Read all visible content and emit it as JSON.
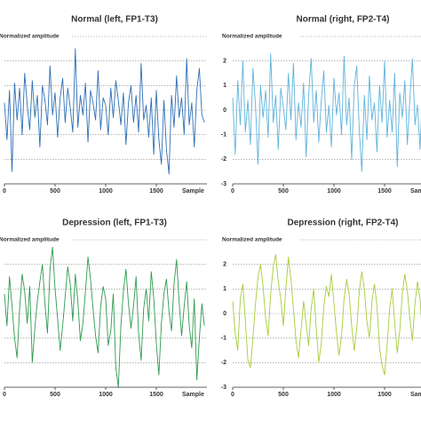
{
  "chart_data": [
    {
      "type": "line",
      "title": "Normal (left, FP1-T3)",
      "ylabel": "Normalized amplitude",
      "xlabel": "Sample",
      "x": [
        0,
        25,
        50,
        75,
        100,
        125,
        150,
        175,
        200,
        225,
        250,
        275,
        300,
        325,
        350,
        375,
        400,
        425,
        450,
        475,
        500,
        525,
        550,
        575,
        600,
        625,
        650,
        675,
        700,
        725,
        750,
        775,
        800,
        825,
        850,
        875,
        900,
        925,
        950,
        975,
        1000,
        1025,
        1050,
        1075,
        1100,
        1125,
        1150,
        1175,
        1200,
        1225,
        1250,
        1275,
        1300,
        1325,
        1350,
        1375,
        1400,
        1425,
        1450,
        1475,
        1500,
        1525,
        1550,
        1575,
        1600,
        1625,
        1650,
        1675,
        1700,
        1725,
        1750,
        1775,
        1800,
        1825,
        1850,
        1875,
        1900,
        1925,
        1950,
        1975
      ],
      "series": [
        {
          "name": "FP1-T3",
          "color": "#2e6fb5",
          "values": [
            0.3,
            -1.2,
            0.8,
            -2.5,
            1.1,
            -0.4,
            0.9,
            -1.0,
            1.5,
            0.2,
            -0.8,
            1.2,
            -0.3,
            0.6,
            -1.5,
            1.0,
            0.4,
            -0.6,
            1.8,
            -0.2,
            0.7,
            -1.1,
            0.5,
            1.3,
            -0.5,
            0.9,
            0.1,
            -0.9,
            2.5,
            -0.7,
            0.6,
            -0.2,
            1.1,
            -1.3,
            0.8,
            0.3,
            -0.4,
            1.6,
            -0.8,
            0.5,
            0.2,
            -1.0,
            0.9,
            -0.3,
            1.2,
            0.4,
            -0.6,
            0.7,
            -1.4,
            0.3,
            1.0,
            -0.5,
            0.6,
            -0.9,
            1.9,
            -0.4,
            0.2,
            -1.1,
            0.5,
            -1.8,
            0.8,
            -1.2,
            -2.2,
            0.4,
            -1.6,
            -2.6,
            0.6,
            -0.7,
            1.4,
            -0.3,
            0.5,
            -1.0,
            2.1,
            -0.6,
            0.3,
            -1.5,
            0.8,
            1.7,
            -0.2,
            -0.5
          ]
        }
      ],
      "xlim": [
        0,
        2000
      ],
      "xticks": [
        0,
        500,
        1000,
        1500
      ],
      "ylim": [
        -3,
        3
      ],
      "yticks": [
        2,
        1,
        0,
        -1,
        -2,
        -3
      ],
      "ytick_labels": false,
      "grid": true
    },
    {
      "type": "line",
      "title": "Normal (right, FP2-T4)",
      "ylabel": "Normalized amplitude",
      "xlabel": "Sample",
      "x": [
        0,
        25,
        50,
        75,
        100,
        125,
        150,
        175,
        200,
        225,
        250,
        275,
        300,
        325,
        350,
        375,
        400,
        425,
        450,
        475,
        500,
        525,
        550,
        575,
        600,
        625,
        650,
        675,
        700,
        725,
        750,
        775,
        800,
        825,
        850,
        875,
        900,
        925,
        950,
        975,
        1000,
        1025,
        1050,
        1075,
        1100,
        1125,
        1150,
        1175,
        1200,
        1225,
        1250,
        1275,
        1300,
        1325,
        1350,
        1375,
        1400,
        1425,
        1450,
        1475,
        1500,
        1525,
        1550,
        1575,
        1600,
        1625,
        1650,
        1675,
        1700,
        1725,
        1750,
        1775,
        1800,
        1825,
        1850,
        1875,
        1900,
        1925,
        1950,
        1975
      ],
      "series": [
        {
          "name": "FP2-T4",
          "color": "#5fb3dd",
          "values": [
            0.5,
            -1.8,
            1.2,
            -0.6,
            2.0,
            -0.9,
            0.4,
            -1.4,
            1.7,
            0.2,
            -2.2,
            1.0,
            -0.3,
            0.8,
            -1.1,
            2.3,
            -0.5,
            0.6,
            -1.6,
            0.9,
            0.1,
            -0.8,
            1.5,
            -0.4,
            1.9,
            -1.2,
            0.3,
            -0.7,
            1.1,
            -1.9,
            0.6,
            2.1,
            -0.5,
            0.8,
            -1.3,
            0.4,
            1.6,
            -0.9,
            0.2,
            -1.5,
            1.3,
            -0.2,
            0.7,
            -1.0,
            2.2,
            -0.6,
            0.5,
            -2.0,
            0.9,
            1.8,
            -0.8,
            -2.5,
            0.6,
            -1.2,
            1.4,
            -0.4,
            0.3,
            -1.7,
            1.0,
            -0.5,
            2.0,
            -1.1,
            0.4,
            -0.9,
            1.5,
            -2.3,
            0.7,
            -0.3,
            1.2,
            -1.4,
            0.5,
            2.1,
            -0.6,
            0.2,
            -1.6,
            0.9,
            -0.7,
            1.3,
            -0.4,
            0.8
          ]
        }
      ],
      "xlim": [
        0,
        2000
      ],
      "xticks": [
        0,
        500,
        1000,
        1500
      ],
      "ylim": [
        -3,
        3
      ],
      "yticks": [
        2,
        1,
        0,
        -1,
        -2,
        -3
      ],
      "ytick_labels": true,
      "grid": true
    },
    {
      "type": "line",
      "title": "Depression (left, FP1-T3)",
      "ylabel": "Normalized amplitude",
      "xlabel": "Sample",
      "x": [
        0,
        25,
        50,
        75,
        100,
        125,
        150,
        175,
        200,
        225,
        250,
        275,
        300,
        325,
        350,
        375,
        400,
        425,
        450,
        475,
        500,
        525,
        550,
        575,
        600,
        625,
        650,
        675,
        700,
        725,
        750,
        775,
        800,
        825,
        850,
        875,
        900,
        925,
        950,
        975,
        1000,
        1025,
        1050,
        1075,
        1100,
        1125,
        1150,
        1175,
        1200,
        1225,
        1250,
        1275,
        1300,
        1325,
        1350,
        1375,
        1400,
        1425,
        1450,
        1475,
        1500,
        1525,
        1550,
        1575,
        1600,
        1625,
        1650,
        1675,
        1700,
        1725,
        1750,
        1775,
        1800,
        1825,
        1850,
        1875,
        1900,
        1925,
        1950,
        1975
      ],
      "series": [
        {
          "name": "FP1-T3",
          "color": "#2e9a4e",
          "values": [
            0.8,
            -0.5,
            1.5,
            0.3,
            -1.0,
            -1.8,
            0.2,
            1.6,
            0.9,
            -0.4,
            1.1,
            -2.0,
            -0.6,
            0.5,
            1.3,
            2.0,
            0.4,
            -0.8,
            1.8,
            2.7,
            1.0,
            -0.2,
            -1.5,
            -0.5,
            0.7,
            1.9,
            1.2,
            -0.3,
            1.6,
            0.5,
            -1.1,
            -0.4,
            0.9,
            2.3,
            1.4,
            0.2,
            -0.9,
            -1.6,
            0.3,
            1.1,
            0.6,
            -1.3,
            -0.7,
            0.8,
            -2.2,
            -3.0,
            -0.5,
            0.9,
            1.8,
            0.4,
            -0.6,
            0.3,
            1.5,
            -0.8,
            -1.9,
            0.2,
            1.0,
            -0.3,
            1.7,
            0.6,
            -1.2,
            -2.5,
            -0.4,
            0.8,
            1.4,
            0.1,
            -0.7,
            1.2,
            2.2,
            0.5,
            -0.9,
            0.3,
            1.3,
            -0.5,
            -1.4,
            0.6,
            -2.7,
            -1.0,
            0.4,
            -0.5
          ]
        }
      ],
      "xlim": [
        0,
        2000
      ],
      "xticks": [
        0,
        500,
        1000,
        1500
      ],
      "ylim": [
        -3,
        3
      ],
      "yticks": [
        2,
        1,
        0,
        -1,
        -2,
        -3
      ],
      "ytick_labels": false,
      "grid": true
    },
    {
      "type": "line",
      "title": "Depression (right, FP2-T4)",
      "ylabel": "Normalized amplitude",
      "xlabel": "Sample",
      "x": [
        0,
        25,
        50,
        75,
        100,
        125,
        150,
        175,
        200,
        225,
        250,
        275,
        300,
        325,
        350,
        375,
        400,
        425,
        450,
        475,
        500,
        525,
        550,
        575,
        600,
        625,
        650,
        675,
        700,
        725,
        750,
        775,
        800,
        825,
        850,
        875,
        900,
        925,
        950,
        975,
        1000,
        1025,
        1050,
        1075,
        1100,
        1125,
        1150,
        1175,
        1200,
        1225,
        1250,
        1275,
        1300,
        1325,
        1350,
        1375,
        1400,
        1425,
        1450,
        1475,
        1500,
        1525,
        1550,
        1575,
        1600,
        1625,
        1650,
        1675,
        1700,
        1725,
        1750,
        1775,
        1800,
        1825,
        1850,
        1875,
        1900,
        1925,
        1950,
        1975
      ],
      "series": [
        {
          "name": "FP2-T4",
          "color": "#a6cc3a",
          "values": [
            0.5,
            -0.8,
            -1.5,
            0.6,
            1.2,
            -0.3,
            -1.9,
            -2.2,
            -1.0,
            0.4,
            1.5,
            2.0,
            1.1,
            -0.2,
            -0.9,
            0.8,
            1.9,
            2.4,
            1.3,
            0.6,
            -0.5,
            1.0,
            2.3,
            1.4,
            0.2,
            -1.1,
            -1.8,
            -0.7,
            0.5,
            -0.4,
            -1.3,
            0.2,
            1.0,
            -0.6,
            -2.0,
            -1.2,
            0.3,
            1.1,
            0.7,
            1.6,
            0.4,
            -0.8,
            -1.7,
            -0.9,
            0.6,
            1.4,
            0.8,
            -0.5,
            -1.5,
            -0.6,
            0.9,
            1.7,
            1.0,
            -0.3,
            -1.0,
            0.5,
            1.2,
            0.3,
            -1.4,
            -2.1,
            -2.5,
            -1.3,
            0.2,
            1.0,
            -0.4,
            -1.6,
            -0.7,
            0.8,
            1.6,
            0.9,
            -0.2,
            -1.1,
            0.4,
            1.3,
            0.6,
            -0.9,
            -2.6,
            -1.5,
            0.3,
            0.9
          ]
        }
      ],
      "xlim": [
        0,
        2000
      ],
      "xticks": [
        0,
        500,
        1000,
        1500
      ],
      "ylim": [
        -3,
        3
      ],
      "yticks": [
        2,
        1,
        0,
        -1,
        -2,
        -3
      ],
      "ytick_labels": true,
      "grid": true
    }
  ]
}
